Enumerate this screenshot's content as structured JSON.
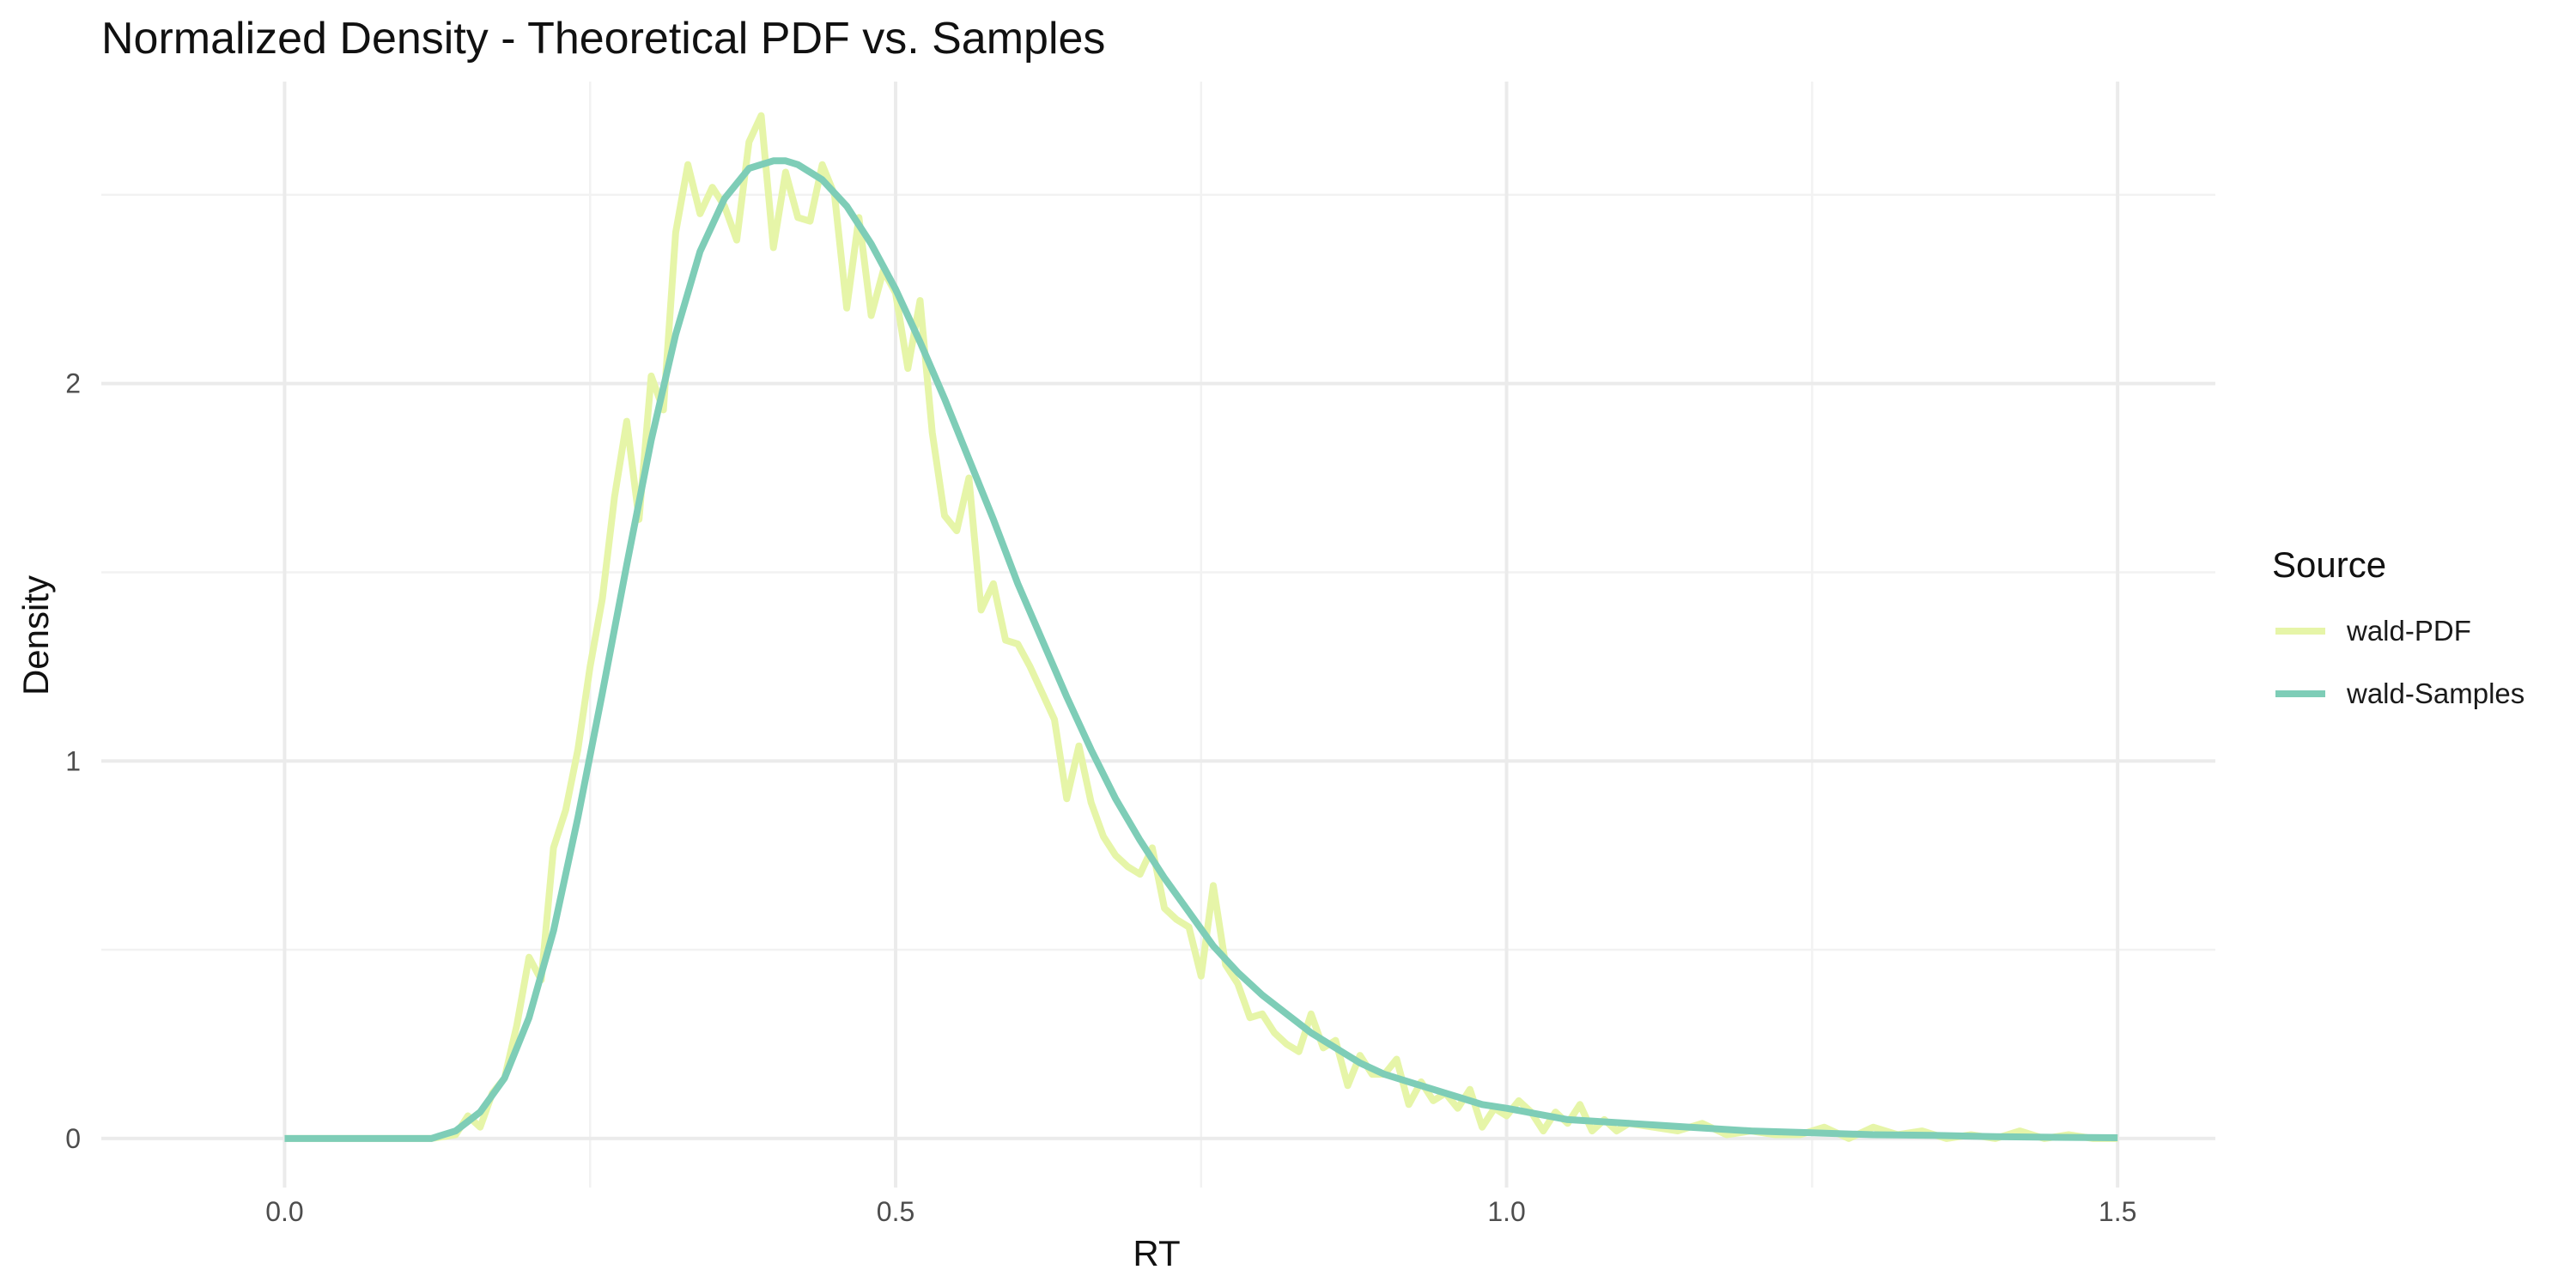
{
  "chart_data": {
    "type": "line",
    "title": "Normalized Density - Theoretical PDF vs. Samples",
    "xlabel": "RT",
    "ylabel": "Density",
    "xlim": [
      -0.15,
      1.58
    ],
    "ylim": [
      -0.13,
      2.8
    ],
    "x_ticks": [
      0.0,
      0.5,
      1.0,
      1.5
    ],
    "x_tick_labels": [
      "0.0",
      "0.5",
      "1.0",
      "1.5"
    ],
    "x_minor_ticks": [
      0.25,
      0.75,
      1.25
    ],
    "y_ticks": [
      0,
      1,
      2
    ],
    "y_tick_labels": [
      "0",
      "1",
      "2"
    ],
    "y_minor_ticks": [
      0.5,
      1.5,
      2.5
    ],
    "grid": true,
    "legend": {
      "title": "Source",
      "position": "right"
    },
    "series": [
      {
        "name": "wald-PDF",
        "color": "#E6F5A8",
        "x": [
          0.0,
          0.1,
          0.12,
          0.14,
          0.15,
          0.16,
          0.17,
          0.18,
          0.19,
          0.2,
          0.21,
          0.22,
          0.23,
          0.24,
          0.25,
          0.26,
          0.27,
          0.28,
          0.29,
          0.3,
          0.31,
          0.32,
          0.33,
          0.34,
          0.35,
          0.36,
          0.37,
          0.38,
          0.39,
          0.4,
          0.41,
          0.42,
          0.43,
          0.44,
          0.45,
          0.46,
          0.47,
          0.48,
          0.49,
          0.5,
          0.51,
          0.52,
          0.53,
          0.54,
          0.55,
          0.56,
          0.57,
          0.58,
          0.59,
          0.6,
          0.61,
          0.62,
          0.63,
          0.64,
          0.65,
          0.66,
          0.67,
          0.68,
          0.69,
          0.7,
          0.71,
          0.72,
          0.73,
          0.74,
          0.75,
          0.76,
          0.77,
          0.78,
          0.79,
          0.8,
          0.81,
          0.82,
          0.83,
          0.84,
          0.85,
          0.86,
          0.87,
          0.88,
          0.89,
          0.9,
          0.91,
          0.92,
          0.93,
          0.94,
          0.95,
          0.96,
          0.97,
          0.98,
          0.99,
          1.0,
          1.01,
          1.02,
          1.03,
          1.04,
          1.05,
          1.06,
          1.07,
          1.08,
          1.09,
          1.1,
          1.12,
          1.14,
          1.16,
          1.18,
          1.2,
          1.22,
          1.24,
          1.26,
          1.28,
          1.3,
          1.32,
          1.34,
          1.36,
          1.38,
          1.4,
          1.42,
          1.44,
          1.46,
          1.48,
          1.5
        ],
        "y": [
          0.0,
          0.0,
          0.0,
          0.01,
          0.06,
          0.03,
          0.12,
          0.16,
          0.3,
          0.48,
          0.42,
          0.77,
          0.87,
          1.03,
          1.25,
          1.43,
          1.7,
          1.9,
          1.64,
          2.02,
          1.93,
          2.4,
          2.58,
          2.45,
          2.52,
          2.47,
          2.38,
          2.64,
          2.71,
          2.36,
          2.56,
          2.44,
          2.43,
          2.58,
          2.5,
          2.2,
          2.44,
          2.18,
          2.3,
          2.24,
          2.04,
          2.22,
          1.87,
          1.65,
          1.61,
          1.75,
          1.4,
          1.47,
          1.32,
          1.31,
          1.25,
          1.18,
          1.11,
          0.9,
          1.04,
          0.89,
          0.8,
          0.75,
          0.72,
          0.7,
          0.77,
          0.61,
          0.58,
          0.56,
          0.43,
          0.67,
          0.46,
          0.41,
          0.32,
          0.33,
          0.28,
          0.25,
          0.23,
          0.33,
          0.24,
          0.26,
          0.14,
          0.22,
          0.17,
          0.17,
          0.21,
          0.09,
          0.15,
          0.1,
          0.12,
          0.08,
          0.13,
          0.03,
          0.08,
          0.06,
          0.1,
          0.07,
          0.02,
          0.07,
          0.04,
          0.09,
          0.02,
          0.05,
          0.02,
          0.04,
          0.03,
          0.02,
          0.04,
          0.01,
          0.02,
          0.01,
          0.01,
          0.03,
          0.0,
          0.03,
          0.01,
          0.02,
          0.0,
          0.01,
          0.0,
          0.02,
          0.0,
          0.01,
          0.0,
          0.0
        ]
      },
      {
        "name": "wald-Samples",
        "color": "#7ECDB7",
        "x": [
          0.0,
          0.08,
          0.12,
          0.14,
          0.16,
          0.18,
          0.2,
          0.22,
          0.24,
          0.26,
          0.28,
          0.3,
          0.32,
          0.34,
          0.36,
          0.38,
          0.4,
          0.41,
          0.42,
          0.44,
          0.46,
          0.48,
          0.5,
          0.52,
          0.54,
          0.56,
          0.58,
          0.6,
          0.62,
          0.64,
          0.66,
          0.68,
          0.7,
          0.72,
          0.74,
          0.76,
          0.78,
          0.8,
          0.82,
          0.84,
          0.86,
          0.88,
          0.9,
          0.92,
          0.94,
          0.96,
          0.98,
          1.0,
          1.05,
          1.1,
          1.15,
          1.2,
          1.25,
          1.3,
          1.35,
          1.4,
          1.45,
          1.5
        ],
        "y": [
          0.0,
          0.0,
          0.0,
          0.02,
          0.07,
          0.16,
          0.32,
          0.55,
          0.85,
          1.18,
          1.52,
          1.85,
          2.13,
          2.35,
          2.49,
          2.57,
          2.59,
          2.59,
          2.58,
          2.54,
          2.47,
          2.37,
          2.25,
          2.11,
          1.96,
          1.8,
          1.64,
          1.47,
          1.32,
          1.17,
          1.03,
          0.9,
          0.79,
          0.69,
          0.6,
          0.51,
          0.44,
          0.38,
          0.33,
          0.28,
          0.24,
          0.2,
          0.17,
          0.15,
          0.13,
          0.11,
          0.09,
          0.08,
          0.05,
          0.04,
          0.03,
          0.02,
          0.015,
          0.01,
          0.008,
          0.005,
          0.003,
          0.002
        ]
      }
    ]
  }
}
